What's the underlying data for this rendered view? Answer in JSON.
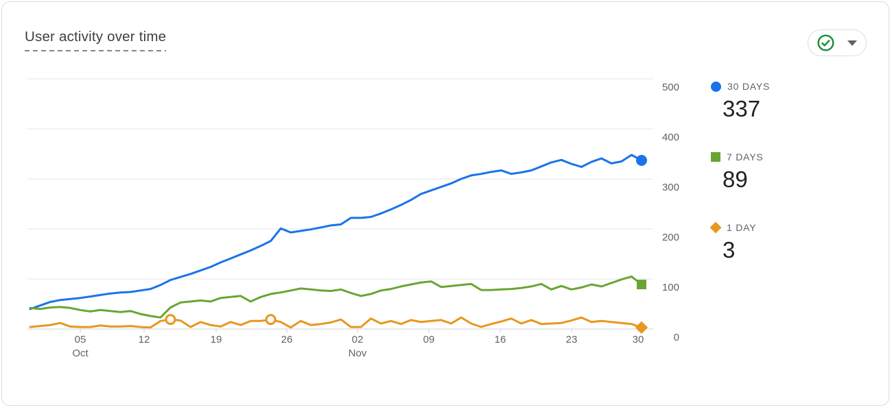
{
  "card": {
    "title": "User activity over time"
  },
  "toolbar": {
    "status_button": {
      "icon": "check-circle",
      "icon_color": "#1E8E3E",
      "caret_icon": "caret-down",
      "caret_color": "#5F6368"
    }
  },
  "legend": {
    "items": [
      {
        "label": "30 DAYS",
        "value": "337",
        "color": "#1A73E8",
        "marker": "circle"
      },
      {
        "label": "7 DAYS",
        "value": "89",
        "color": "#69A532",
        "marker": "square"
      },
      {
        "label": "1 DAY",
        "value": "3",
        "color": "#E8971E",
        "marker": "diamond"
      }
    ]
  },
  "chart_data": {
    "type": "line",
    "title": "User activity over time",
    "xlabel": "",
    "ylabel": "",
    "ylim": [
      0,
      500
    ],
    "grid": true,
    "legend_position": "right",
    "y_ticks": [
      500,
      400,
      300,
      200,
      100,
      0
    ],
    "x_ticks": [
      {
        "day": "05",
        "month": "Oct"
      },
      {
        "day": "12",
        "month": ""
      },
      {
        "day": "19",
        "month": ""
      },
      {
        "day": "26",
        "month": ""
      },
      {
        "day": "02",
        "month": "Nov"
      },
      {
        "day": "09",
        "month": ""
      },
      {
        "day": "16",
        "month": ""
      },
      {
        "day": "23",
        "month": ""
      },
      {
        "day": "30",
        "month": ""
      }
    ],
    "series": [
      {
        "name": "30 DAYS",
        "color": "#1A73E8",
        "end_marker": "circle",
        "ring_points": [],
        "values": [
          40,
          47,
          54,
          58,
          60,
          62,
          65,
          68,
          71,
          73,
          74,
          77,
          80,
          88,
          98,
          104,
          110,
          117,
          124,
          133,
          141,
          149,
          157,
          166,
          176,
          201,
          193,
          196,
          199,
          203,
          207,
          209,
          222,
          222,
          224,
          231,
          239,
          248,
          258,
          270,
          277,
          284,
          291,
          300,
          307,
          310,
          314,
          317,
          310,
          313,
          317,
          325,
          333,
          338,
          330,
          324,
          334,
          341,
          331,
          335,
          348,
          337
        ]
      },
      {
        "name": "7 DAYS",
        "color": "#69A532",
        "end_marker": "square",
        "ring_points": [],
        "values": [
          42,
          40,
          43,
          44,
          42,
          38,
          35,
          38,
          36,
          34,
          36,
          30,
          26,
          23,
          43,
          53,
          55,
          57,
          55,
          62,
          64,
          66,
          55,
          64,
          70,
          73,
          77,
          81,
          79,
          77,
          76,
          79,
          72,
          66,
          70,
          77,
          80,
          85,
          89,
          93,
          95,
          84,
          86,
          88,
          90,
          78,
          78,
          79,
          80,
          82,
          85,
          90,
          79,
          86,
          79,
          83,
          89,
          85,
          92,
          99,
          105,
          89
        ]
      },
      {
        "name": "1 DAY",
        "color": "#E8971E",
        "end_marker": "diamond",
        "ring_points": [
          14,
          24
        ],
        "values": [
          4,
          6,
          8,
          12,
          5,
          4,
          4,
          7,
          5,
          5,
          6,
          4,
          3,
          16,
          19,
          17,
          4,
          14,
          8,
          5,
          14,
          8,
          16,
          16,
          19,
          14,
          3,
          16,
          8,
          10,
          13,
          19,
          4,
          4,
          21,
          11,
          16,
          10,
          18,
          14,
          16,
          18,
          11,
          23,
          11,
          4,
          10,
          15,
          21,
          11,
          18,
          10,
          11,
          12,
          17,
          23,
          14,
          16,
          14,
          12,
          10,
          3
        ]
      }
    ]
  }
}
